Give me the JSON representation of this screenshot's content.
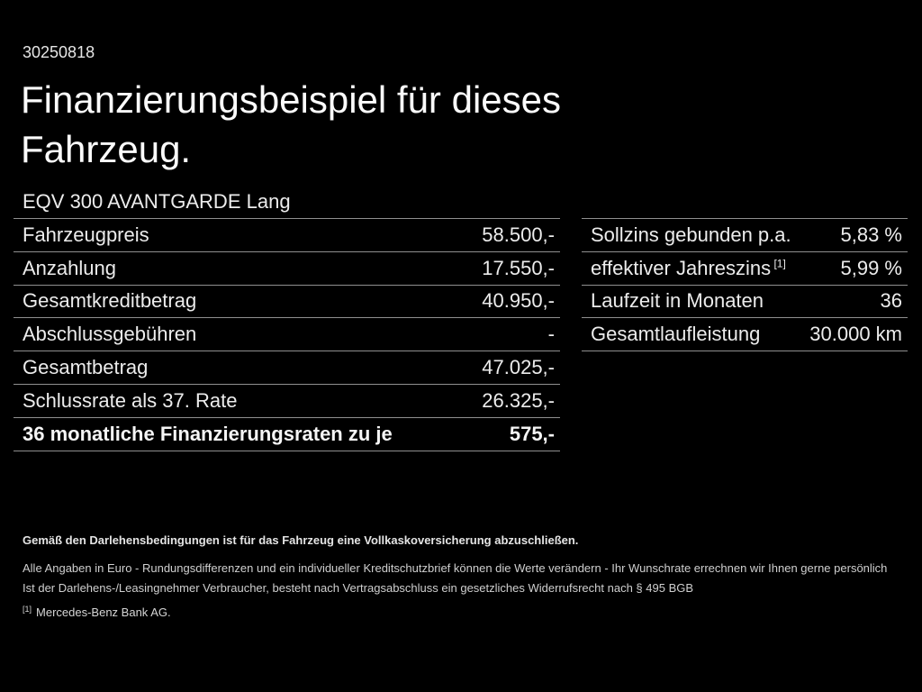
{
  "page": {
    "background": "#000000",
    "text_color": "#efefef",
    "divider_color": "#8f8f8f"
  },
  "header": {
    "doc_id": "30250818",
    "title_line1": "Finanzierungsbeispiel für dieses",
    "title_line2": "Fahrzeug.",
    "vehicle": "EQV 300 AVANTGARDE Lang"
  },
  "left_table": {
    "rows": [
      {
        "label": "Fahrzeugpreis",
        "value": "58.500,-",
        "bold": false
      },
      {
        "label": "Anzahlung",
        "value": "17.550,-",
        "bold": false
      },
      {
        "label": "Gesamtkreditbetrag",
        "value": "40.950,-",
        "bold": false
      },
      {
        "label": "Abschlussgebühren",
        "value": "-",
        "bold": false
      },
      {
        "label": "Gesamtbetrag",
        "value": "47.025,-",
        "bold": false
      },
      {
        "label": "Schlussrate als 37. Rate",
        "value": "26.325,-",
        "bold": false
      },
      {
        "label": "36 monatliche Finanzierungsraten zu je",
        "value": "575,-",
        "bold": true
      }
    ]
  },
  "right_table": {
    "rows": [
      {
        "label": "Sollzins gebunden p.a.",
        "value": "5,83 %",
        "bold": false
      },
      {
        "label": "effektiver Jahreszins",
        "label_sup": "[1]",
        "value": "5,99 %",
        "bold": false
      },
      {
        "label": "Laufzeit in Monaten",
        "value": "36",
        "bold": false
      },
      {
        "label": "Gesamtlaufleistung",
        "value": "30.000 km",
        "bold": false
      }
    ]
  },
  "footnotes": {
    "insurance_note": "Gemäß den Darlehensbedingungen ist für das Fahrzeug eine Vollkaskoversicherung abzuschließen.",
    "disclaimer_line1": "Alle Angaben in Euro - Rundungsdifferenzen und ein individueller Kreditschutzbrief können die Werte verändern - Ihr Wunschrate errechnen wir Ihnen gerne persönlich",
    "disclaimer_line2": "Ist der Darlehens-/Leasingnehmer Verbraucher, besteht nach Vertragsabschluss ein gesetzliches Widerrufsrecht nach § 495 BGB",
    "ref_marker": "[1]",
    "ref_text": "Mercedes-Benz Bank AG."
  }
}
